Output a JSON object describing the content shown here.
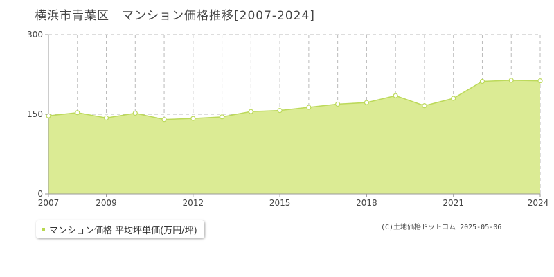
{
  "page": {
    "title": "横浜市青葉区　マンション価格推移[2007-2024]",
    "copyright": "(C)土地価格ドットコム 2025-05-06"
  },
  "legend": {
    "label": "マンション価格 平均坪単価(万円/坪)"
  },
  "colors": {
    "fill": "#dbeb94",
    "line": "#bcd95a",
    "marker_fill": "#ffffff",
    "grid": "#bbbbbb",
    "axis": "#999999",
    "legend_marker": "#b8d850"
  },
  "chart_data": {
    "type": "area",
    "title": "",
    "xlabel": "",
    "ylabel": "",
    "x": [
      2007,
      2008,
      2009,
      2010,
      2011,
      2012,
      2013,
      2014,
      2015,
      2016,
      2017,
      2018,
      2019,
      2020,
      2021,
      2022,
      2023,
      2024
    ],
    "series": [
      {
        "name": "マンション価格 平均坪単価(万円/坪)",
        "values": [
          147,
          153,
          143,
          152,
          140,
          142,
          145,
          155,
          157,
          163,
          169,
          172,
          185,
          166,
          180,
          212,
          214,
          213
        ]
      }
    ],
    "ylim": [
      0,
      300
    ],
    "yticks": [
      "0",
      "150",
      "300"
    ],
    "xticks": [
      "2007",
      "2009",
      "2012",
      "2015",
      "2018",
      "2021",
      "2024"
    ],
    "grid": true,
    "legend_position": "bottom-left"
  }
}
